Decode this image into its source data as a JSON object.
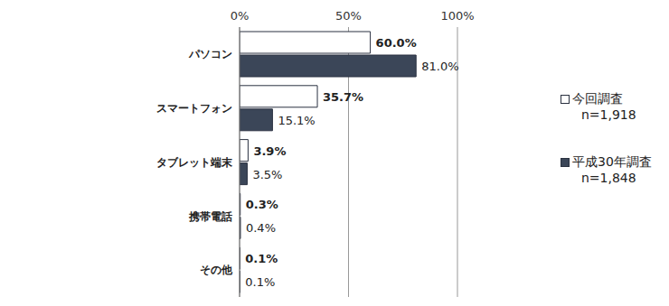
{
  "chart_data": {
    "type": "bar",
    "orientation": "horizontal",
    "categories": [
      "パソコン",
      "スマートフォン",
      "タブレット端末",
      "携帯電話",
      "その他"
    ],
    "series": [
      {
        "name": "今回調査 n=1,918",
        "color": "#ffffff",
        "values": [
          60.0,
          35.7,
          3.9,
          0.3,
          0.1
        ],
        "value_labels": [
          "60.0%",
          "35.7%",
          "3.9%",
          "0.3%",
          "0.1%"
        ]
      },
      {
        "name": "平成30年調査 n=1,848",
        "color": "#3b4658",
        "values": [
          81.0,
          15.1,
          3.5,
          0.4,
          0.1
        ],
        "value_labels": [
          "81.0%",
          "15.1%",
          "3.5%",
          "0.4%",
          "0.1%"
        ]
      }
    ],
    "xlim": [
      0,
      100
    ],
    "xticks": [
      {
        "value": 0,
        "label": "0%"
      },
      {
        "value": 50,
        "label": "50%"
      },
      {
        "value": 100,
        "label": "100%"
      }
    ],
    "grid": true,
    "legend": "right",
    "data_labels": true
  }
}
